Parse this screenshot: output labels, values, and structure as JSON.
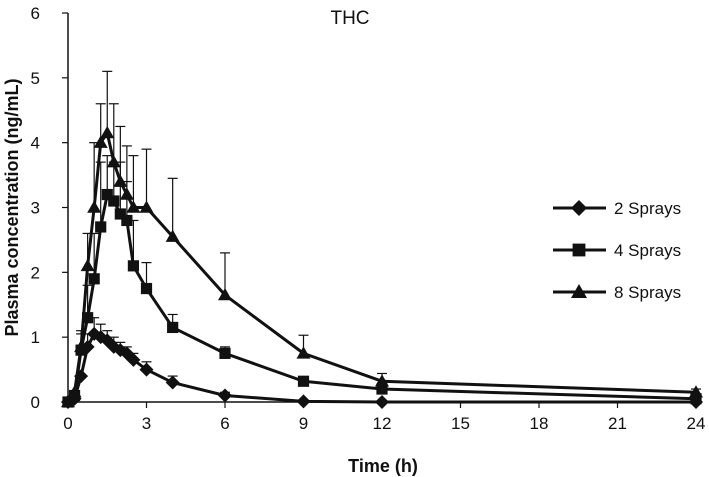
{
  "chart_data": {
    "type": "line",
    "title": "THC",
    "xlabel": "Time (h)",
    "ylabel": "Plasma concentration (ng/mL)",
    "xlim": [
      0,
      24
    ],
    "ylim": [
      0,
      6
    ],
    "x_ticks": [
      0,
      3,
      6,
      9,
      12,
      15,
      18,
      21,
      24
    ],
    "y_ticks": [
      0,
      1,
      2,
      3,
      4,
      5,
      6
    ],
    "grid": false,
    "legend_position": "right",
    "series": [
      {
        "name": "2 Sprays",
        "marker": "diamond",
        "x": [
          0,
          0.25,
          0.5,
          0.75,
          1,
          1.25,
          1.5,
          1.75,
          2,
          2.25,
          2.5,
          3,
          4,
          6,
          9,
          12,
          24
        ],
        "y": [
          0,
          0.05,
          0.4,
          0.85,
          1.05,
          1.0,
          0.95,
          0.85,
          0.8,
          0.75,
          0.65,
          0.5,
          0.3,
          0.1,
          0.01,
          0.0,
          0.0
        ],
        "error": [
          0,
          0,
          0,
          0.2,
          0.25,
          0.2,
          0.15,
          0.15,
          0.12,
          0.1,
          0.1,
          0.12,
          0.1,
          0.05,
          0,
          0,
          0
        ]
      },
      {
        "name": "4 Sprays",
        "marker": "square",
        "x": [
          0,
          0.25,
          0.5,
          0.75,
          1,
          1.25,
          1.5,
          1.75,
          2,
          2.25,
          2.5,
          3,
          4,
          6,
          9,
          12,
          24
        ],
        "y": [
          0,
          0.1,
          0.8,
          1.3,
          1.9,
          2.7,
          3.2,
          3.1,
          2.9,
          2.8,
          2.1,
          1.75,
          1.15,
          0.75,
          0.32,
          0.2,
          0.05
        ],
        "error": [
          0,
          0,
          0.3,
          0.5,
          0.7,
          1.0,
          0.6,
          0.6,
          0.8,
          0.6,
          0.7,
          0.4,
          0.2,
          0.1,
          0.05,
          0.05,
          0
        ]
      },
      {
        "name": "8 Sprays",
        "marker": "triangle",
        "x": [
          0,
          0.25,
          0.5,
          0.75,
          1,
          1.25,
          1.5,
          1.75,
          2,
          2.25,
          2.5,
          3,
          4,
          6,
          9,
          12,
          24
        ],
        "y": [
          0,
          0.15,
          0.85,
          2.1,
          3.0,
          4.0,
          4.15,
          3.7,
          3.4,
          3.2,
          3.0,
          3.0,
          2.55,
          1.65,
          0.75,
          0.32,
          0.15
        ],
        "error": [
          0,
          0,
          0.2,
          0.5,
          1.0,
          0.6,
          0.95,
          0.9,
          0.85,
          0.75,
          0.8,
          0.9,
          0.9,
          0.65,
          0.28,
          0.12,
          0.05
        ]
      }
    ]
  }
}
